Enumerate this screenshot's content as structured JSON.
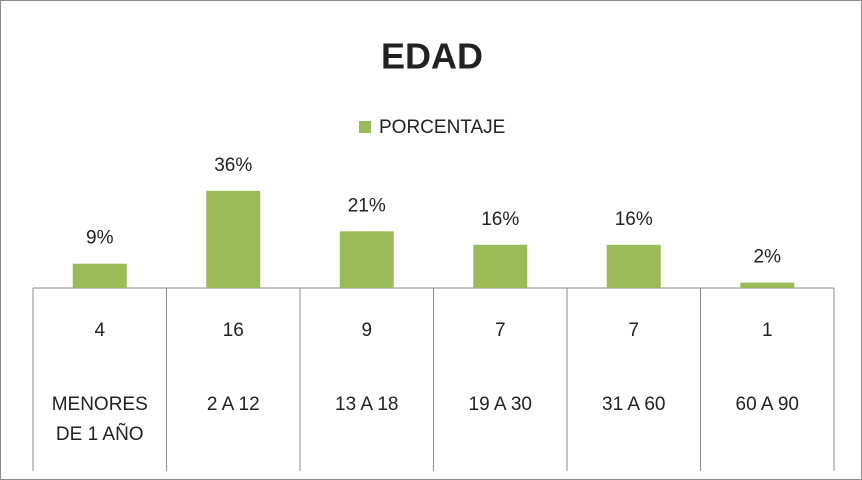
{
  "chart_data": {
    "type": "bar",
    "title": "EDAD",
    "categories": [
      "MENORES DE 1 AÑO",
      "2 A 12",
      "13 A 18",
      "19 A 30",
      "31 A 60",
      "60 A 90"
    ],
    "series": [
      {
        "name": "PORCENTAJE",
        "color": "#9bbb59",
        "values": [
          9,
          36,
          21,
          16,
          16,
          2
        ],
        "value_labels": [
          "9%",
          "36%",
          "21%",
          "16%",
          "16%",
          "2%"
        ]
      }
    ],
    "counts": [
      4,
      16,
      9,
      7,
      7,
      1
    ],
    "ylim": [
      0,
      40
    ]
  }
}
